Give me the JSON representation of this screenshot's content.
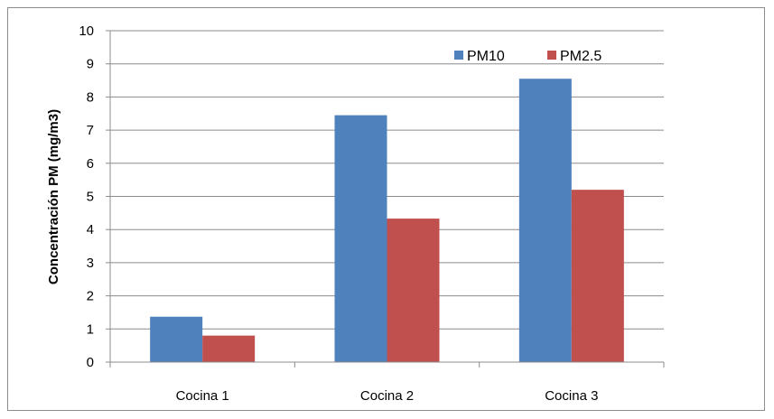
{
  "chart_data": {
    "type": "bar",
    "title": "",
    "xlabel": "",
    "ylabel": "Concentración PM (mg/m3)",
    "categories": [
      "Cocina 1",
      "Cocina 2",
      "Cocina 3"
    ],
    "series": [
      {
        "name": "PM10",
        "values": [
          1.37,
          7.45,
          8.55
        ],
        "color": "#4f81bd"
      },
      {
        "name": "PM2.5",
        "values": [
          0.8,
          4.33,
          5.2
        ],
        "color": "#c0504d"
      }
    ],
    "ylim": [
      0,
      10
    ],
    "yticks": [
      "0",
      "1",
      "2",
      "3",
      "4",
      "5",
      "6",
      "7",
      "8",
      "9",
      "10"
    ],
    "grid": true,
    "legend_position": "top-right"
  }
}
